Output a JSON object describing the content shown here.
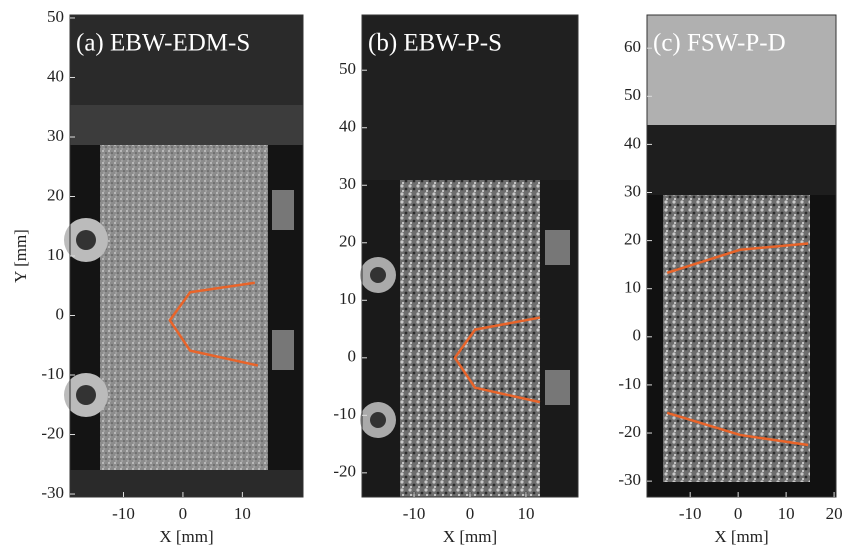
{
  "chart_data": [
    {
      "type": "line",
      "title": "(a) EBW-EDM-S",
      "xlabel": "X [mm]",
      "ylabel": "Y [mm]",
      "xlim": [
        -19,
        20.2
      ],
      "ylim": [
        -30.5,
        50.5
      ],
      "xticks": [
        -10,
        0,
        10
      ],
      "yticks": [
        -30,
        -20,
        -10,
        0,
        10,
        20,
        30,
        40,
        50
      ],
      "series": [
        {
          "color": "#e8642a",
          "x": [
            12.1,
            1.2,
            -2.2,
            1.2,
            12.6
          ],
          "values": [
            5.5,
            3.9,
            -0.8,
            -5.9,
            -8.4
          ]
        }
      ]
    },
    {
      "type": "line",
      "title": "(b) EBW-P-S",
      "xlabel": "X [mm]",
      "xlim": [
        -19.3,
        19.3
      ],
      "ylim": [
        -24.2,
        59.6
      ],
      "xticks": [
        -10,
        0,
        10
      ],
      "yticks": [
        -20,
        -10,
        0,
        10,
        20,
        30,
        40,
        50
      ],
      "series": [
        {
          "color": "#e8642a",
          "x": [
            12.5,
            0.9,
            -2.7,
            0.9,
            12.5
          ],
          "values": [
            7,
            4.9,
            0,
            -5.2,
            -7.7
          ]
        }
      ]
    },
    {
      "type": "line",
      "title": "(c) FSW-P-D",
      "xlabel": "X [mm]",
      "xlim": [
        -19,
        20.4
      ],
      "ylim": [
        -33.3,
        66.9
      ],
      "xticks": [
        -10,
        0,
        10,
        20
      ],
      "yticks": [
        -30,
        -20,
        -10,
        0,
        10,
        20,
        30,
        40,
        50,
        60
      ],
      "series": [
        {
          "color": "#e8642a",
          "x": [
            -14.8,
            0.4,
            14.6
          ],
          "values": [
            13.3,
            18.1,
            19.4
          ]
        },
        {
          "color": "#e8642a",
          "x": [
            -14.8,
            0.4,
            14.6
          ],
          "values": [
            -15.8,
            -20.4,
            -22.5
          ]
        }
      ]
    }
  ]
}
